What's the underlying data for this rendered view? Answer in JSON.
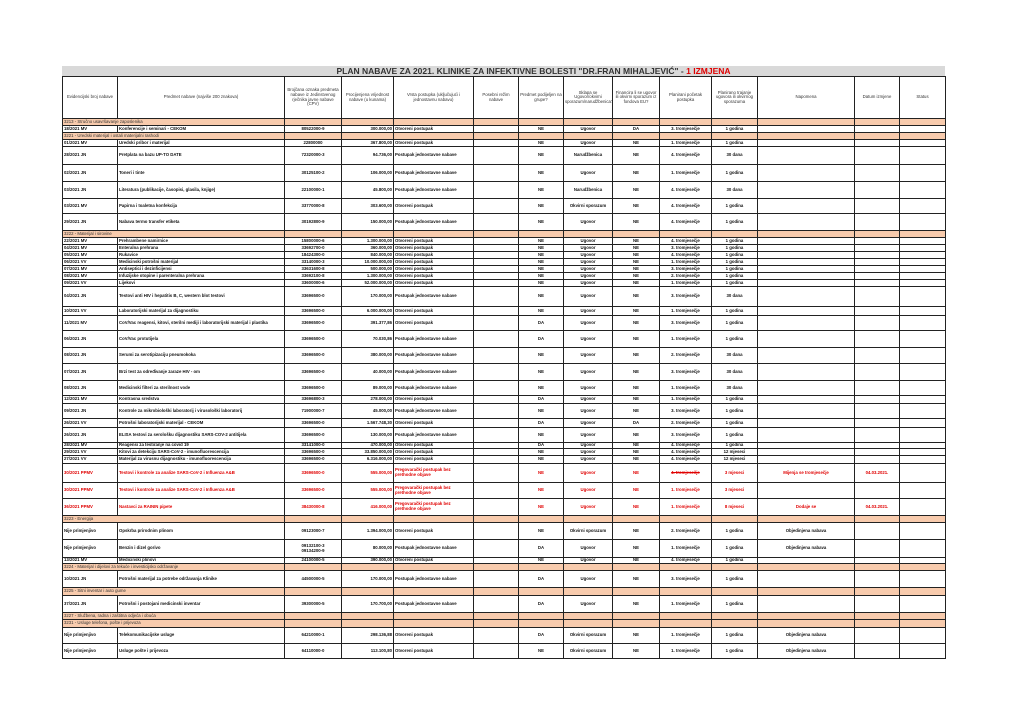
{
  "title": {
    "main": "PLAN NABAVE ZA 2021. KLINIKE ZA INFEKTIVNE BOLESTI \"DR.FRAN MIHALJEVIĆ\" - ",
    "revision": "1 IZMJENA",
    "revision_color": "#e00000"
  },
  "colors": {
    "section_bg": "#f8cbad",
    "title_bg": "#d9d9d9",
    "changed_row": "#e00000"
  },
  "columns": [
    "Evidencijski broj nabave",
    "Predmet nabave (najviše 200 znakova)",
    "Brojčana oznaka predmeta nabave iz Jedinstvenog rječnika javne nabave (CPV)",
    "Procijenjena vrijednost nabave (u kunama)",
    "Vrsta postupka (uključujući i jednostavnu nabavu)",
    "Posebni režim nabave",
    "Predmet podijeljen na grupe?",
    "Sklapa se Ugovor/okvirni sporazum/narudžbenica?",
    "Financira li se ugovor ili okvirni sporazum iz fondova EU?",
    "Planirani početak postupka",
    "Planirano trajanje ugovora ili okvirnog sporazuma",
    "Napomena",
    "Datum izmjene",
    "Status"
  ],
  "rows": [
    {
      "section": "3213 - Stručno usavršavanje zaposlenika"
    },
    {
      "cells": [
        "18/2021 MV",
        "Konferencije i seminari - CEKOM",
        "80522000-9",
        "300.000,00",
        "Otvoreni postupak",
        "",
        "NE",
        "Ugovor",
        "DA",
        "3. tromjesečje",
        "1 godina",
        "",
        "",
        ""
      ]
    },
    {
      "section": "3221 - Uredski materijal i ostali materijalni rashodi"
    },
    {
      "cells": [
        "01/2021 MV",
        "Uredski pribor i materijal",
        "22800000",
        "367.800,00",
        "Otvoreni postupak",
        "",
        "NE",
        "Ugovor",
        "NE",
        "1. tromjesečje",
        "1 godina",
        "",
        "",
        ""
      ]
    },
    {
      "cells": [
        "28/2021 JN",
        "Pretplata na bazu UP-TO DATE",
        "72320000-3",
        "94.736,00",
        "Postupak jednostavne nabave",
        "",
        "NE",
        "Narudžbenica",
        "NE",
        "4. tromjesečje",
        "30 dana",
        "",
        "",
        ""
      ]
    },
    {
      "cells": [
        "02/2021 JN",
        "Toneri i tinte",
        "30125100-2",
        "106.000,00",
        "Postupak jednostavne nabave",
        "",
        "NE",
        "Ugovor",
        "NE",
        "1. tromjesečje",
        "1 godina",
        "",
        "",
        ""
      ]
    },
    {
      "cells": [
        "03/2021 JN",
        "Literatura (publikacije, časopisi, glasila, knjige)",
        "22100000-1",
        "45.800,00",
        "Postupak jednostavne nabave",
        "",
        "NE",
        "Narudžbenica",
        "NE",
        "4. tromjesečje",
        "30 dana",
        "",
        "",
        ""
      ]
    },
    {
      "cells": [
        "03/2021 MV",
        "Papirna i toaletna konfekcija",
        "33770000-8",
        "303.600,00",
        "Otvoreni postupak",
        "",
        "NE",
        "Okvirni sporazum",
        "NE",
        "4. tromjesečje",
        "1 godina",
        "",
        "",
        ""
      ]
    },
    {
      "cells": [
        "29/2021 JN",
        "Nabava termo transfer etiketa",
        "30192800-9",
        "150.000,00",
        "Postupak jednostavne nabave",
        "",
        "NE",
        "Ugovor",
        "NE",
        "4. tromjesečje",
        "1 godina",
        "",
        "",
        ""
      ]
    },
    {
      "section": "3222 - Materijal i sirovine"
    },
    {
      "cells": [
        "22/2021 MV",
        "Prehrambene namirnice",
        "15800000-6",
        "1.300.000,00",
        "Otvoreni postupak",
        "",
        "NE",
        "Ugovor",
        "NE",
        "4. tromjesečje",
        "1 godina",
        "",
        "",
        ""
      ]
    },
    {
      "cells": [
        "04/2021 MV",
        "Enteralna prehrana",
        "33692700-0",
        "360.000,00",
        "Otvoreni postupak",
        "",
        "NE",
        "Ugovor",
        "NE",
        "3. tromjesečje",
        "1 godina",
        "",
        "",
        ""
      ]
    },
    {
      "cells": [
        "05/2021 MV",
        "Rukavice",
        "18424300-0",
        "840.000,00",
        "Otvoreni postupak",
        "",
        "NE",
        "Ugovor",
        "NE",
        "4. tromjesečje",
        "1 godina",
        "",
        "",
        ""
      ]
    },
    {
      "cells": [
        "06/2021 VV",
        "Medicinski potrošni materijal",
        "33140000-3",
        "10.000.000,00",
        "Otvoreni postupak",
        "",
        "NE",
        "Ugovor",
        "NE",
        "1. tromjesečje",
        "1 godina",
        "",
        "",
        ""
      ]
    },
    {
      "cells": [
        "07/2021 MV",
        "Antiseptici i dezinficijensi",
        "33631600-8",
        "500.000,00",
        "Otvoreni postupak",
        "",
        "NE",
        "Ugovor",
        "NE",
        "3. tromjesečje",
        "1 godina",
        "",
        "",
        ""
      ]
    },
    {
      "cells": [
        "08/2021 MV",
        "Infuzijske otopine i parenteralna prehrana",
        "33692100-8",
        "1.300.000,00",
        "Otvoreni postupak",
        "",
        "NE",
        "Ugovor",
        "NE",
        "2. tromjesečje",
        "1 godina",
        "",
        "",
        ""
      ]
    },
    {
      "cells": [
        "09/2021 VV",
        "Lijekovi",
        "33600000-6",
        "52.000.000,00",
        "Otvoreni postupak",
        "",
        "NE",
        "Ugovor",
        "NE",
        "1. tromjesečje",
        "1 godina",
        "",
        "",
        ""
      ]
    },
    {
      "cells": [
        "04/2021 JN",
        "Testovi anti HIV i hepatitis B, C, western blot testovi",
        "33696500-0",
        "170.000,00",
        "Postupak jednostavne nabave",
        "",
        "NE",
        "Ugovor",
        "NE",
        "3. tromjesečje",
        "30 dana",
        "",
        "",
        ""
      ]
    },
    {
      "cells": [
        "10/2021 VV",
        "Laboratorijski materijal za dijagnostiku",
        "33696500-0",
        "6.000.000,00",
        "Otvoreni postupak",
        "",
        "NE",
        "Ugovor",
        "NE",
        "1. tromjesečje",
        "1 godina",
        "",
        "",
        ""
      ]
    },
    {
      "cells": [
        "11/2021 MV",
        "CoV/Vac reagensi, kitovi, sterilni mediji i laboratorijski materijal i plastika",
        "33696500-0",
        "391.377,86",
        "Otvoreni postupak",
        "",
        "DA",
        "Ugovor",
        "NE",
        "3. tromjesečje",
        "1 godina",
        "",
        "",
        ""
      ]
    },
    {
      "cells": [
        "06/2021 JN",
        "CoV/Vac protutijela",
        "33696500-0",
        "70.030,86",
        "Postupak jednostavne nabave",
        "",
        "DA",
        "Ugovor",
        "NE",
        "1. tromjesečje",
        "1 godina",
        "",
        "",
        ""
      ]
    },
    {
      "cells": [
        "08/2021 JN",
        "Serumi za serotipizaciju pneumokoka",
        "33696500-0",
        "380.000,00",
        "Postupak jednostavne nabave",
        "",
        "NE",
        "Ugovor",
        "NE",
        "2. tromjesečje",
        "30 dana",
        "",
        "",
        ""
      ]
    },
    {
      "cells": [
        "07/2021 JN",
        "Brzi test za određivanje zaraze HIV - om",
        "33696500-0",
        "40.000,00",
        "Postupak jednostavne nabave",
        "",
        "NE",
        "Ugovor",
        "NE",
        "3. tromjesečje",
        "30 dana",
        "",
        "",
        ""
      ]
    },
    {
      "cells": [
        "08/2021 JN",
        "Medicinski filteri za sterilnost vode",
        "33696500-0",
        "89.000,00",
        "Postupak jednostavne nabave",
        "",
        "NE",
        "Ugovor",
        "NE",
        "1. tromjesečje",
        "30 dana",
        "",
        "",
        ""
      ]
    },
    {
      "cells": [
        "12/2021 MV",
        "Kontrasna sredstva",
        "33696800-3",
        "278.000,00",
        "Otvoreni postupak",
        "",
        "DA",
        "Ugovor",
        "NE",
        "1. tromjesečje",
        "1 godina",
        "",
        "",
        ""
      ]
    },
    {
      "cells": [
        "09/2021 JN",
        "Kontrole za mikrobiološki laboratorij i virusološki laboratorij",
        "71900000-7",
        "45.000,00",
        "Postupak jednostavne nabave",
        "",
        "NE",
        "Ugovor",
        "NE",
        "3. tromjesečje",
        "1 godina",
        "",
        "",
        ""
      ]
    },
    {
      "cells": [
        "26/2021 VV",
        "Potrošni laboratorijski materijal - CEKOM",
        "33696500-0",
        "1.567.748,30",
        "Otvoreni postupak",
        "",
        "DA",
        "Ugovor",
        "DA",
        "2. tromjesečje",
        "1 godina",
        "",
        "",
        ""
      ]
    },
    {
      "cells": [
        "26/2021 JN",
        "ELISA testovi za serološku dijagnostiku SARS-COV-2 antitijela",
        "33696500-0",
        "130.000,00",
        "Postupak jednostavne nabave",
        "",
        "NE",
        "Ugovor",
        "NE",
        "3. tromjesečje",
        "1 godina",
        "",
        "",
        ""
      ]
    },
    {
      "cells": [
        "28/2021 MV",
        "Reagensi za testiranje na covid 19",
        "33141000-0",
        "470.000,00",
        "Otvoreni postupak",
        "",
        "DA",
        "Ugovor",
        "NE",
        "4. tromjesečje",
        "1 godina",
        "",
        "",
        ""
      ]
    },
    {
      "cells": [
        "29/2021 VV",
        "Kitovi za detekciju SARS-CoV-2 - imunofluorescencija",
        "33696500-0",
        "33.850.000,00",
        "Otvoreni postupak",
        "",
        "NE",
        "Ugovor",
        "NE",
        "4. tromjesečje",
        "12 mjeseci",
        "",
        "",
        ""
      ]
    },
    {
      "cells": [
        "27/2021 VV",
        "Materijal za virusnu dijagnostiku - imunofluorescencija",
        "33696500-0",
        "6.316.000,00",
        "Otvoreni postupak",
        "",
        "NE",
        "Ugovor",
        "NE",
        "4. tromjesečje",
        "12 mjeseci",
        "",
        "",
        ""
      ]
    },
    {
      "red": true,
      "strike_start": true,
      "cells": [
        "30/2021 PPMV",
        "Testovi i kontrole za analize SARS-CoV-2 i Influenza A&B",
        "33696500-0",
        "555.000,00",
        "Pregovarački postupak bez prethodne objave",
        "",
        "NE",
        "Ugovor",
        "NE",
        "4. tromjesečje",
        "3 mjeseci",
        "Mijenja se tromjesečje",
        "04.03.2021.",
        ""
      ]
    },
    {
      "red": true,
      "cells": [
        "30/2021 PPMV",
        "Testovi i kontrole za analize SARS-CoV-2 i Influenza A&B",
        "33696500-0",
        "555.000,00",
        "Pregovarački postupak bez prethodne objave",
        "",
        "NE",
        "Ugovor",
        "NE",
        "1. tromjesečje",
        "3 mjeseci",
        "",
        "",
        ""
      ]
    },
    {
      "red": true,
      "cells": [
        "36/2021 PPMV",
        "Nastavci za RAININ pipete",
        "38430000-8",
        "416.000,00",
        "Pregovarački postupak bez prethodne objave",
        "",
        "NE",
        "Ugovor",
        "NE",
        "1. tromjesečje",
        "8 mjeseci",
        "Dodaje se",
        "04.03.2021.",
        ""
      ]
    },
    {
      "section": "3223 - Energija"
    },
    {
      "cells": [
        "Nije primjenjivo",
        "Opskrba prirodnim plinom",
        "09123000-7",
        "1.394.000,00",
        "Otvoreni postupak",
        "",
        "NE",
        "Okvirni sporazum",
        "NE",
        "2. tromjesečje",
        "1 godina",
        "Objedinjena nabava",
        "",
        ""
      ]
    },
    {
      "cells": [
        "Nije primjenjivo",
        "Benzin i dizel gorivo",
        "09132100-3\n09134200-9",
        "80.000,00",
        "Postupak jednostavne nabave",
        "",
        "DA",
        "Ugovor",
        "NE",
        "1. tromjesečje",
        "1 godina",
        "Objedinjena nabava",
        "",
        ""
      ]
    },
    {
      "cells": [
        "13/2021 MV",
        "Medicinski plinovi",
        "24100000-5",
        "390.000,00",
        "Otvoreni postupak",
        "",
        "NE",
        "Ugovor",
        "NE",
        "4. tromjesečje",
        "1 godina",
        "",
        "",
        ""
      ]
    },
    {
      "section": "3224 - Materijal i dijelovi za tekuće i investicijsko održavanje"
    },
    {
      "cells": [
        "10/2021 JN",
        "Potrošni materijal za potrebe održavanja Klinike",
        "44500000-5",
        "170.000,00",
        "Postupak jednostavne nabave",
        "",
        "DA",
        "Ugovor",
        "NE",
        "3. tromjesečje",
        "1 godina",
        "",
        "",
        ""
      ]
    },
    {
      "section": "3225 - Sitni inventar i auto gume"
    },
    {
      "cells": [
        "37/2021 JN",
        "Potrošni i postojani medicinski inventar",
        "39300000-5",
        "170.700,00",
        "Postupak jednostavne nabave",
        "",
        "DA",
        "Ugovor",
        "NE",
        "1. tromjesečje",
        "1 godina",
        "",
        "",
        ""
      ]
    },
    {
      "section": "3227 - Službena, radna i zaštitna odjeća i obuća"
    },
    {
      "section": "3231 - Usluge telefona, pošte i prijevoza"
    },
    {
      "cells": [
        "Nije primjenjivo",
        "Telekomunikacijske usluge",
        "64210000-1",
        "298.136,88",
        "Otvoreni postupak",
        "",
        "DA",
        "Okvirni sporazum",
        "NE",
        "1. tromjesečje",
        "1 godina",
        "Objedinjena nabava",
        "",
        ""
      ]
    },
    {
      "cells": [
        "Nije primjenjivo",
        "Usluge pošte i prijevoza",
        "64110000-0",
        "113.100,80",
        "Otvoreni postupak",
        "",
        "NE",
        "Okvirni sporazum",
        "NE",
        "1. tromjesečje",
        "1 godina",
        "Objedinjena nabava",
        "",
        ""
      ]
    }
  ]
}
